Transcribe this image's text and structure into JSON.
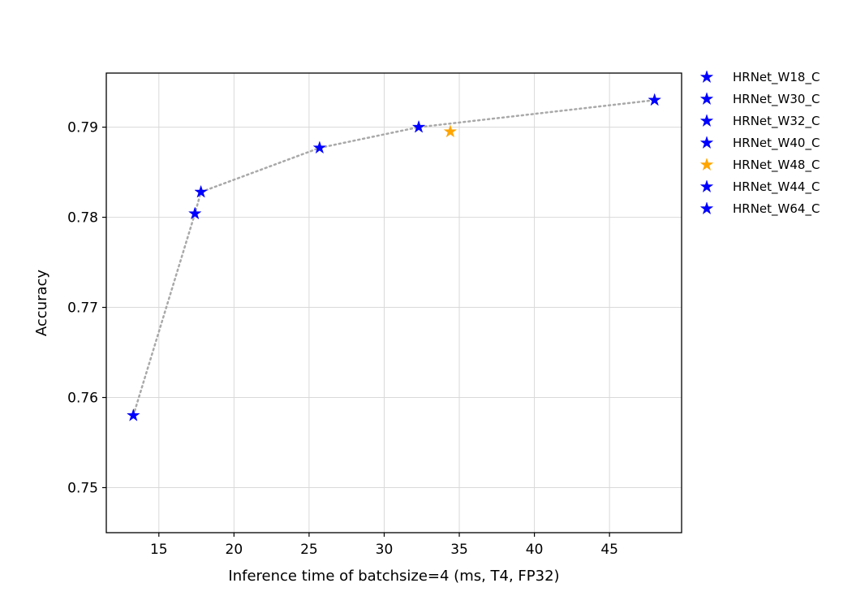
{
  "chart_data": {
    "type": "scatter",
    "title": "",
    "xlabel": "Inference time of batchsize=4 (ms, T4, FP32)",
    "ylabel": "Accuracy",
    "xlim": [
      11.5,
      49.8
    ],
    "ylim": [
      0.745,
      0.796
    ],
    "xticks": [
      15,
      20,
      25,
      30,
      35,
      40,
      45
    ],
    "yticks": [
      0.75,
      0.76,
      0.77,
      0.78,
      0.79
    ],
    "grid": true,
    "legend_position": "outside-right-top",
    "marker": "star",
    "series": [
      {
        "name": "HRNet_W18_C",
        "x": 13.3,
        "y": 0.758,
        "color": "#0000ff"
      },
      {
        "name": "HRNet_W30_C",
        "x": 17.4,
        "y": 0.7804,
        "color": "#0000ff"
      },
      {
        "name": "HRNet_W32_C",
        "x": 17.8,
        "y": 0.7828,
        "color": "#0000ff"
      },
      {
        "name": "HRNet_W40_C",
        "x": 25.7,
        "y": 0.7877,
        "color": "#0000ff"
      },
      {
        "name": "HRNet_W48_C",
        "x": 34.4,
        "y": 0.7895,
        "color": "#ffa500"
      },
      {
        "name": "HRNet_W44_C",
        "x": 32.3,
        "y": 0.79,
        "color": "#0000ff"
      },
      {
        "name": "HRNet_W64_C",
        "x": 48.0,
        "y": 0.793,
        "color": "#0000ff"
      }
    ],
    "trend_line": {
      "style": "dotted",
      "color": "#a9a9a9",
      "points": [
        [
          13.3,
          0.758
        ],
        [
          17.4,
          0.7804
        ],
        [
          17.8,
          0.7828
        ],
        [
          25.7,
          0.7877
        ],
        [
          32.3,
          0.79
        ],
        [
          48.0,
          0.793
        ]
      ]
    }
  }
}
